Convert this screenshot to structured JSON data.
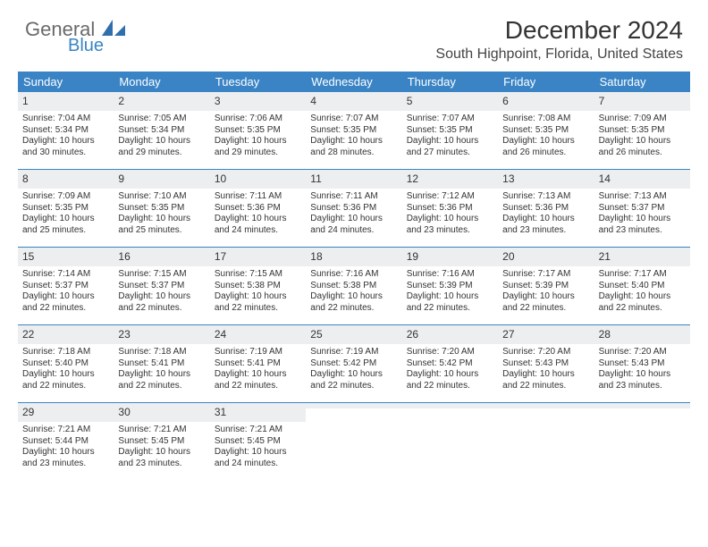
{
  "brand": {
    "general": "General",
    "blue": "Blue"
  },
  "title": "December 2024",
  "location": "South Highpoint, Florida, United States",
  "colors": {
    "header_bg": "#3a84c5",
    "daynum_bg": "#eceef0",
    "week_border": "#3a84c5",
    "text": "#333333",
    "brand_gray": "#6a6a6a",
    "brand_blue": "#3a84c5"
  },
  "day_labels": [
    "Sunday",
    "Monday",
    "Tuesday",
    "Wednesday",
    "Thursday",
    "Friday",
    "Saturday"
  ],
  "weeks": [
    [
      {
        "n": "1",
        "sunrise": "7:04 AM",
        "sunset": "5:34 PM",
        "daylight": "10 hours and 30 minutes."
      },
      {
        "n": "2",
        "sunrise": "7:05 AM",
        "sunset": "5:34 PM",
        "daylight": "10 hours and 29 minutes."
      },
      {
        "n": "3",
        "sunrise": "7:06 AM",
        "sunset": "5:35 PM",
        "daylight": "10 hours and 29 minutes."
      },
      {
        "n": "4",
        "sunrise": "7:07 AM",
        "sunset": "5:35 PM",
        "daylight": "10 hours and 28 minutes."
      },
      {
        "n": "5",
        "sunrise": "7:07 AM",
        "sunset": "5:35 PM",
        "daylight": "10 hours and 27 minutes."
      },
      {
        "n": "6",
        "sunrise": "7:08 AM",
        "sunset": "5:35 PM",
        "daylight": "10 hours and 26 minutes."
      },
      {
        "n": "7",
        "sunrise": "7:09 AM",
        "sunset": "5:35 PM",
        "daylight": "10 hours and 26 minutes."
      }
    ],
    [
      {
        "n": "8",
        "sunrise": "7:09 AM",
        "sunset": "5:35 PM",
        "daylight": "10 hours and 25 minutes."
      },
      {
        "n": "9",
        "sunrise": "7:10 AM",
        "sunset": "5:35 PM",
        "daylight": "10 hours and 25 minutes."
      },
      {
        "n": "10",
        "sunrise": "7:11 AM",
        "sunset": "5:36 PM",
        "daylight": "10 hours and 24 minutes."
      },
      {
        "n": "11",
        "sunrise": "7:11 AM",
        "sunset": "5:36 PM",
        "daylight": "10 hours and 24 minutes."
      },
      {
        "n": "12",
        "sunrise": "7:12 AM",
        "sunset": "5:36 PM",
        "daylight": "10 hours and 23 minutes."
      },
      {
        "n": "13",
        "sunrise": "7:13 AM",
        "sunset": "5:36 PM",
        "daylight": "10 hours and 23 minutes."
      },
      {
        "n": "14",
        "sunrise": "7:13 AM",
        "sunset": "5:37 PM",
        "daylight": "10 hours and 23 minutes."
      }
    ],
    [
      {
        "n": "15",
        "sunrise": "7:14 AM",
        "sunset": "5:37 PM",
        "daylight": "10 hours and 22 minutes."
      },
      {
        "n": "16",
        "sunrise": "7:15 AM",
        "sunset": "5:37 PM",
        "daylight": "10 hours and 22 minutes."
      },
      {
        "n": "17",
        "sunrise": "7:15 AM",
        "sunset": "5:38 PM",
        "daylight": "10 hours and 22 minutes."
      },
      {
        "n": "18",
        "sunrise": "7:16 AM",
        "sunset": "5:38 PM",
        "daylight": "10 hours and 22 minutes."
      },
      {
        "n": "19",
        "sunrise": "7:16 AM",
        "sunset": "5:39 PM",
        "daylight": "10 hours and 22 minutes."
      },
      {
        "n": "20",
        "sunrise": "7:17 AM",
        "sunset": "5:39 PM",
        "daylight": "10 hours and 22 minutes."
      },
      {
        "n": "21",
        "sunrise": "7:17 AM",
        "sunset": "5:40 PM",
        "daylight": "10 hours and 22 minutes."
      }
    ],
    [
      {
        "n": "22",
        "sunrise": "7:18 AM",
        "sunset": "5:40 PM",
        "daylight": "10 hours and 22 minutes."
      },
      {
        "n": "23",
        "sunrise": "7:18 AM",
        "sunset": "5:41 PM",
        "daylight": "10 hours and 22 minutes."
      },
      {
        "n": "24",
        "sunrise": "7:19 AM",
        "sunset": "5:41 PM",
        "daylight": "10 hours and 22 minutes."
      },
      {
        "n": "25",
        "sunrise": "7:19 AM",
        "sunset": "5:42 PM",
        "daylight": "10 hours and 22 minutes."
      },
      {
        "n": "26",
        "sunrise": "7:20 AM",
        "sunset": "5:42 PM",
        "daylight": "10 hours and 22 minutes."
      },
      {
        "n": "27",
        "sunrise": "7:20 AM",
        "sunset": "5:43 PM",
        "daylight": "10 hours and 22 minutes."
      },
      {
        "n": "28",
        "sunrise": "7:20 AM",
        "sunset": "5:43 PM",
        "daylight": "10 hours and 23 minutes."
      }
    ],
    [
      {
        "n": "29",
        "sunrise": "7:21 AM",
        "sunset": "5:44 PM",
        "daylight": "10 hours and 23 minutes."
      },
      {
        "n": "30",
        "sunrise": "7:21 AM",
        "sunset": "5:45 PM",
        "daylight": "10 hours and 23 minutes."
      },
      {
        "n": "31",
        "sunrise": "7:21 AM",
        "sunset": "5:45 PM",
        "daylight": "10 hours and 24 minutes."
      },
      null,
      null,
      null,
      null
    ]
  ],
  "labels": {
    "sunrise_prefix": "Sunrise: ",
    "sunset_prefix": "Sunset: ",
    "daylight_prefix": "Daylight: "
  }
}
